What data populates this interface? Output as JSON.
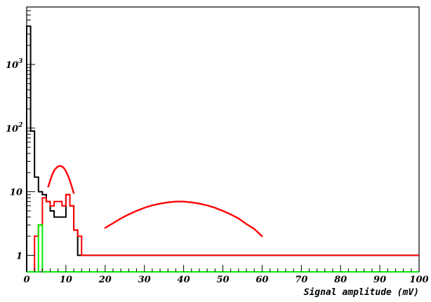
{
  "chart_data": {
    "type": "line",
    "xlabel": "Signal amplitude (mV)",
    "ylabel": "",
    "xlim": [
      0,
      100
    ],
    "ylim": [
      0.55,
      8000
    ],
    "y_scale": "log",
    "grid": false,
    "x_ticks": [
      0,
      10,
      20,
      30,
      40,
      50,
      60,
      70,
      80,
      90,
      100
    ],
    "x_tick_labels": [
      "0",
      "10",
      "20",
      "30",
      "40",
      "50",
      "60",
      "70",
      "80",
      "90",
      "100"
    ],
    "y_ticks": [
      {
        "value": 1,
        "label": "1"
      },
      {
        "value": 10,
        "label": "10"
      },
      {
        "value": 100,
        "label": "10",
        "sup": "2"
      },
      {
        "value": 1000,
        "label": "10",
        "sup": "3"
      }
    ],
    "bin_width": 1,
    "series": [
      {
        "style": "histogram",
        "color": "#000000",
        "values": [
          4000,
          90,
          17,
          10,
          9,
          7,
          5,
          4,
          4,
          4,
          9,
          6,
          2.5,
          1,
          1,
          1,
          1,
          1,
          1,
          1,
          1,
          1,
          1,
          1,
          1,
          1,
          1,
          1,
          1,
          1,
          1,
          1,
          1,
          1,
          1,
          1,
          1,
          1,
          1,
          1,
          1,
          1,
          1,
          1,
          1,
          1,
          1,
          1,
          1,
          1,
          1,
          1,
          1,
          1,
          1,
          1,
          1,
          1,
          1,
          1,
          1,
          1,
          1,
          1,
          1,
          1,
          1,
          1,
          1,
          1,
          1,
          1,
          1,
          1,
          1,
          1,
          1,
          1,
          1,
          1,
          1,
          1,
          1,
          1,
          1,
          1,
          1,
          1,
          1,
          1,
          1,
          1,
          1,
          1,
          1,
          1,
          1,
          1,
          1,
          1
        ]
      },
      {
        "style": "histogram",
        "color": "#ff0000",
        "values": [
          0,
          0,
          2,
          3,
          8,
          7,
          6,
          7,
          7,
          6,
          9,
          6,
          2.5,
          2,
          1,
          1,
          1,
          1,
          1,
          1,
          1,
          1,
          1,
          1,
          1,
          1,
          1,
          1,
          1,
          1,
          1,
          1,
          1,
          1,
          1,
          1,
          1,
          1,
          1,
          1,
          1,
          1,
          1,
          1,
          1,
          1,
          1,
          1,
          1,
          1,
          1,
          1,
          1,
          1,
          1,
          1,
          1,
          1,
          1,
          1,
          1,
          1,
          1,
          1,
          1,
          1,
          1,
          1,
          1,
          1,
          1,
          1,
          1,
          1,
          1,
          1,
          1,
          1,
          1,
          1,
          1,
          1,
          1,
          1,
          1,
          1,
          1,
          1,
          1,
          1,
          1,
          1,
          1,
          1,
          1,
          1,
          1,
          1,
          1,
          1
        ]
      },
      {
        "style": "histogram",
        "color": "#00ee00",
        "values": [
          0,
          0,
          0,
          3,
          0,
          0,
          0,
          0,
          0,
          0,
          0,
          0,
          0,
          0,
          0,
          0,
          0,
          0,
          0,
          0,
          0,
          0,
          0,
          0,
          0,
          0,
          0,
          0,
          0,
          0,
          0,
          0,
          0,
          0,
          0,
          0,
          0,
          0,
          0,
          0,
          0,
          0,
          0,
          0,
          0,
          0,
          0,
          0,
          0,
          0,
          0,
          0,
          0,
          0,
          0,
          0,
          0,
          0,
          0,
          0,
          0,
          0,
          0,
          0,
          0,
          0,
          0,
          0,
          0,
          0,
          0,
          0,
          0,
          0,
          0,
          0,
          0,
          0,
          0,
          0,
          0,
          0,
          0,
          0,
          0,
          0,
          0,
          0,
          0,
          0,
          0,
          0,
          0,
          0,
          0,
          0,
          0,
          0,
          0,
          0
        ]
      },
      {
        "style": "curve",
        "color": "#ff0000",
        "x": [
          5.5,
          6,
          6.5,
          7,
          7.5,
          8,
          8.5,
          9,
          9.5,
          10,
          10.5,
          11,
          11.5,
          12
        ],
        "values": [
          12,
          15,
          18.5,
          21.5,
          23.5,
          25,
          25.5,
          25,
          23.5,
          21,
          18,
          15,
          12,
          9.5
        ]
      },
      {
        "style": "curve",
        "color": "#ff0000",
        "x": [
          20,
          22,
          24,
          26,
          28,
          30,
          32,
          34,
          36,
          38,
          40,
          42,
          44,
          46,
          48,
          50,
          52,
          54,
          56,
          58,
          60
        ],
        "values": [
          2.7,
          3.2,
          3.8,
          4.4,
          5.0,
          5.6,
          6.1,
          6.5,
          6.8,
          7.0,
          7.0,
          6.8,
          6.5,
          6.1,
          5.6,
          5.0,
          4.4,
          3.8,
          3.1,
          2.6,
          2.0
        ]
      }
    ]
  }
}
